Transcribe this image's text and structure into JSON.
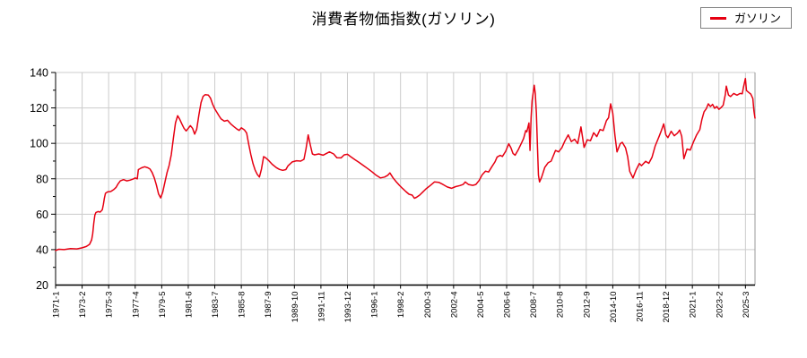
{
  "title": "消費者物価指数(ガソリン)",
  "legend": {
    "position": "top-right",
    "items": [
      {
        "label": "ガソリン",
        "color": "#e60012"
      }
    ]
  },
  "colors": {
    "background": "#ffffff",
    "line": "#e60012",
    "grid": "#cccccc",
    "axis": "#000000",
    "plot_right_border": "#999999",
    "text": "#000000",
    "legend_border": "#7f7f7f"
  },
  "chart_data": {
    "type": "line",
    "title": "消費者物価指数(ガソリン)",
    "xlabel": "",
    "ylabel": "",
    "ylim": [
      20,
      140
    ],
    "y_ticks": [
      20,
      40,
      60,
      80,
      100,
      120,
      140
    ],
    "y_minor_tick_step": 10,
    "grid": true,
    "legend_position": "top-right",
    "x_start": "1971-1",
    "x_end": "2025-12",
    "x_tick_interval_months": 25,
    "x_tick_labels": [
      "1971-1",
      "1973-2",
      "1975-3",
      "1977-4",
      "1979-5",
      "1981-6",
      "1983-7",
      "1985-8",
      "1987-9",
      "1989-10",
      "1991-11",
      "1993-12",
      "1996-1",
      "1998-2",
      "2000-3",
      "2002-4",
      "2004-5",
      "2006-6",
      "2008-7",
      "2010-8",
      "2012-9",
      "2014-10",
      "2016-11",
      "2018-12",
      "2021-1",
      "2023-2",
      "2025-3"
    ],
    "sampling_note": "monthly CPI index series; keypoint values read from chart, straight segments between keypoints",
    "series": [
      {
        "name": "ガソリン",
        "color": "#e60012",
        "points": [
          [
            "1971-1",
            39.5
          ],
          [
            "1971-4",
            40.2
          ],
          [
            "1971-9",
            40.0
          ],
          [
            "1972-3",
            40.6
          ],
          [
            "1972-9",
            40.4
          ],
          [
            "1973-2",
            41.0
          ],
          [
            "1973-6",
            41.8
          ],
          [
            "1973-9",
            43.0
          ],
          [
            "1973-11",
            45.5
          ],
          [
            "1973-12",
            49.0
          ],
          [
            "1974-1",
            55.0
          ],
          [
            "1974-2",
            59.5
          ],
          [
            "1974-3",
            61.0
          ],
          [
            "1974-5",
            61.5
          ],
          [
            "1974-7",
            61.2
          ],
          [
            "1974-9",
            62.5
          ],
          [
            "1974-10",
            65.5
          ],
          [
            "1974-11",
            69.0
          ],
          [
            "1974-12",
            71.8
          ],
          [
            "1975-2",
            72.6
          ],
          [
            "1975-5",
            72.8
          ],
          [
            "1975-8",
            74.0
          ],
          [
            "1975-10",
            75.2
          ],
          [
            "1975-12",
            77.2
          ],
          [
            "1976-2",
            78.8
          ],
          [
            "1976-5",
            79.5
          ],
          [
            "1976-8",
            78.8
          ],
          [
            "1976-11",
            79.2
          ],
          [
            "1977-2",
            79.8
          ],
          [
            "1977-4",
            80.5
          ],
          [
            "1977-6",
            80.0
          ],
          [
            "1977-7",
            85.2
          ],
          [
            "1977-10",
            86.2
          ],
          [
            "1978-1",
            86.8
          ],
          [
            "1978-4",
            86.2
          ],
          [
            "1978-6",
            85.5
          ],
          [
            "1978-8",
            83.5
          ],
          [
            "1978-10",
            80.5
          ],
          [
            "1978-12",
            76.5
          ],
          [
            "1979-2",
            71.5
          ],
          [
            "1979-4",
            69.2
          ],
          [
            "1979-6",
            72.5
          ],
          [
            "1979-8",
            78.0
          ],
          [
            "1979-10",
            83.5
          ],
          [
            "1979-12",
            87.5
          ],
          [
            "1980-2",
            93.5
          ],
          [
            "1980-4",
            103.0
          ],
          [
            "1980-6",
            111.5
          ],
          [
            "1980-8",
            115.6
          ],
          [
            "1980-10",
            113.5
          ],
          [
            "1980-12",
            111.0
          ],
          [
            "1981-2",
            108.5
          ],
          [
            "1981-4",
            107.0
          ],
          [
            "1981-6",
            108.5
          ],
          [
            "1981-8",
            110.0
          ],
          [
            "1981-10",
            108.5
          ],
          [
            "1981-12",
            105.2
          ],
          [
            "1982-2",
            108.0
          ],
          [
            "1982-4",
            116.0
          ],
          [
            "1982-6",
            123.0
          ],
          [
            "1982-8",
            126.5
          ],
          [
            "1982-10",
            127.5
          ],
          [
            "1983-1",
            127.2
          ],
          [
            "1983-3",
            125.5
          ],
          [
            "1983-5",
            122.0
          ],
          [
            "1983-7",
            119.5
          ],
          [
            "1983-9",
            117.5
          ],
          [
            "1983-11",
            115.5
          ],
          [
            "1984-1",
            113.8
          ],
          [
            "1984-4",
            112.5
          ],
          [
            "1984-7",
            113.0
          ],
          [
            "1984-10",
            111.0
          ],
          [
            "1985-1",
            109.5
          ],
          [
            "1985-4",
            108.0
          ],
          [
            "1985-6",
            107.3
          ],
          [
            "1985-8",
            108.8
          ],
          [
            "1985-11",
            107.5
          ],
          [
            "1986-1",
            105.8
          ],
          [
            "1986-3",
            99.5
          ],
          [
            "1986-5",
            93.5
          ],
          [
            "1986-7",
            88.5
          ],
          [
            "1986-9",
            85.0
          ],
          [
            "1986-11",
            82.5
          ],
          [
            "1987-1",
            81.0
          ],
          [
            "1987-3",
            85.5
          ],
          [
            "1987-5",
            92.5
          ],
          [
            "1987-7",
            91.8
          ],
          [
            "1987-10",
            90.2
          ],
          [
            "1988-1",
            88.2
          ],
          [
            "1988-5",
            86.3
          ],
          [
            "1988-8",
            85.3
          ],
          [
            "1988-11",
            84.8
          ],
          [
            "1989-2",
            85.2
          ],
          [
            "1989-4",
            87.3
          ],
          [
            "1989-8",
            89.5
          ],
          [
            "1989-12",
            90.2
          ],
          [
            "1990-4",
            90.0
          ],
          [
            "1990-7",
            91.0
          ],
          [
            "1990-9",
            97.0
          ],
          [
            "1990-11",
            104.8
          ],
          [
            "1991-1",
            99.0
          ],
          [
            "1991-3",
            94.0
          ],
          [
            "1991-5",
            93.5
          ],
          [
            "1991-9",
            94.0
          ],
          [
            "1992-1",
            93.3
          ],
          [
            "1992-7",
            95.2
          ],
          [
            "1992-11",
            94.0
          ],
          [
            "1993-2",
            91.9
          ],
          [
            "1993-6",
            91.8
          ],
          [
            "1993-9",
            93.5
          ],
          [
            "1993-12",
            93.8
          ],
          [
            "1994-3",
            92.5
          ],
          [
            "1994-7",
            90.8
          ],
          [
            "1994-11",
            89.2
          ],
          [
            "1995-3",
            87.5
          ],
          [
            "1995-7",
            85.8
          ],
          [
            "1995-11",
            84.0
          ],
          [
            "1996-3",
            82.0
          ],
          [
            "1996-7",
            80.5
          ],
          [
            "1996-11",
            81.0
          ],
          [
            "1997-2",
            82.0
          ],
          [
            "1997-4",
            83.3
          ],
          [
            "1997-7",
            80.5
          ],
          [
            "1997-10",
            78.3
          ],
          [
            "1998-1",
            76.3
          ],
          [
            "1998-4",
            74.5
          ],
          [
            "1998-7",
            72.8
          ],
          [
            "1998-10",
            71.3
          ],
          [
            "1999-1",
            70.8
          ],
          [
            "1999-3",
            69.0
          ],
          [
            "1999-5",
            69.5
          ],
          [
            "1999-8",
            70.8
          ],
          [
            "1999-11",
            72.5
          ],
          [
            "2000-2",
            74.3
          ],
          [
            "2000-6",
            76.2
          ],
          [
            "2000-10",
            78.2
          ],
          [
            "2001-2",
            78.0
          ],
          [
            "2001-6",
            76.8
          ],
          [
            "2001-10",
            75.4
          ],
          [
            "2002-2",
            74.6
          ],
          [
            "2002-6",
            75.6
          ],
          [
            "2002-10",
            76.2
          ],
          [
            "2003-1",
            76.8
          ],
          [
            "2003-3",
            78.2
          ],
          [
            "2003-6",
            76.8
          ],
          [
            "2003-10",
            76.3
          ],
          [
            "2004-1",
            76.8
          ],
          [
            "2004-4",
            79.0
          ],
          [
            "2004-7",
            82.3
          ],
          [
            "2004-10",
            84.3
          ],
          [
            "2005-1",
            83.8
          ],
          [
            "2005-4",
            86.8
          ],
          [
            "2005-7",
            89.5
          ],
          [
            "2005-9",
            92.3
          ],
          [
            "2005-12",
            93.2
          ],
          [
            "2006-2",
            92.6
          ],
          [
            "2006-5",
            95.5
          ],
          [
            "2006-8",
            99.8
          ],
          [
            "2006-10",
            97.5
          ],
          [
            "2006-12",
            94.3
          ],
          [
            "2007-2",
            93.3
          ],
          [
            "2007-5",
            96.5
          ],
          [
            "2007-8",
            100.2
          ],
          [
            "2007-10",
            102.8
          ],
          [
            "2007-12",
            107.2
          ],
          [
            "2008-1",
            106.5
          ],
          [
            "2008-3",
            111.5
          ],
          [
            "2008-4",
            96.0
          ],
          [
            "2008-5",
            114.5
          ],
          [
            "2008-6",
            124.0
          ],
          [
            "2008-8",
            132.8
          ],
          [
            "2008-9",
            128.0
          ],
          [
            "2008-10",
            117.0
          ],
          [
            "2008-11",
            98.0
          ],
          [
            "2008-12",
            82.0
          ],
          [
            "2009-1",
            78.2
          ],
          [
            "2009-3",
            81.0
          ],
          [
            "2009-6",
            86.5
          ],
          [
            "2009-9",
            89.0
          ],
          [
            "2009-12",
            90.0
          ],
          [
            "2010-2",
            93.0
          ],
          [
            "2010-4",
            96.0
          ],
          [
            "2010-7",
            95.2
          ],
          [
            "2010-10",
            97.5
          ],
          [
            "2011-1",
            101.5
          ],
          [
            "2011-4",
            104.8
          ],
          [
            "2011-7",
            101.0
          ],
          [
            "2011-10",
            102.3
          ],
          [
            "2012-1",
            99.9
          ],
          [
            "2012-4",
            109.3
          ],
          [
            "2012-7",
            97.7
          ],
          [
            "2012-10",
            102.0
          ],
          [
            "2013-1",
            101.5
          ],
          [
            "2013-4",
            106.0
          ],
          [
            "2013-7",
            103.8
          ],
          [
            "2013-10",
            107.8
          ],
          [
            "2014-1",
            107.2
          ],
          [
            "2014-4",
            112.8
          ],
          [
            "2014-6",
            114.5
          ],
          [
            "2014-8",
            122.3
          ],
          [
            "2014-10",
            117.0
          ],
          [
            "2014-12",
            104.5
          ],
          [
            "2015-2",
            95.2
          ],
          [
            "2015-5",
            99.8
          ],
          [
            "2015-7",
            100.6
          ],
          [
            "2015-10",
            97.5
          ],
          [
            "2015-12",
            92.4
          ],
          [
            "2016-2",
            84.2
          ],
          [
            "2016-5",
            80.5
          ],
          [
            "2016-8",
            85.0
          ],
          [
            "2016-11",
            88.6
          ],
          [
            "2017-1",
            87.4
          ],
          [
            "2017-5",
            89.9
          ],
          [
            "2017-8",
            88.7
          ],
          [
            "2017-11",
            92.2
          ],
          [
            "2018-2",
            98.5
          ],
          [
            "2018-6",
            104.5
          ],
          [
            "2018-8",
            107.5
          ],
          [
            "2018-10",
            111.0
          ],
          [
            "2018-12",
            104.8
          ],
          [
            "2019-2",
            103.2
          ],
          [
            "2019-5",
            106.8
          ],
          [
            "2019-8",
            104.3
          ],
          [
            "2019-11",
            105.8
          ],
          [
            "2020-1",
            107.5
          ],
          [
            "2020-3",
            104.0
          ],
          [
            "2020-5",
            91.3
          ],
          [
            "2020-8",
            96.8
          ],
          [
            "2020-11",
            96.2
          ],
          [
            "2021-2",
            100.8
          ],
          [
            "2021-5",
            104.8
          ],
          [
            "2021-8",
            107.8
          ],
          [
            "2021-10",
            113.5
          ],
          [
            "2021-12",
            117.8
          ],
          [
            "2022-2",
            119.5
          ],
          [
            "2022-4",
            122.3
          ],
          [
            "2022-6",
            120.8
          ],
          [
            "2022-8",
            122.0
          ],
          [
            "2022-10",
            119.8
          ],
          [
            "2022-12",
            120.8
          ],
          [
            "2023-2",
            119.2
          ],
          [
            "2023-4",
            120.2
          ],
          [
            "2023-6",
            121.5
          ],
          [
            "2023-8",
            127.5
          ],
          [
            "2023-9",
            132.3
          ],
          [
            "2023-11",
            127.3
          ],
          [
            "2024-1",
            126.4
          ],
          [
            "2024-4",
            128.2
          ],
          [
            "2024-7",
            127.2
          ],
          [
            "2024-10",
            128.2
          ],
          [
            "2024-12",
            128.0
          ],
          [
            "2025-1",
            131.3
          ],
          [
            "2025-3",
            136.6
          ],
          [
            "2025-4",
            129.8
          ],
          [
            "2025-6",
            128.8
          ],
          [
            "2025-8",
            127.8
          ],
          [
            "2025-10",
            125.3
          ],
          [
            "2025-11",
            118.3
          ],
          [
            "2025-12",
            114.3
          ]
        ]
      }
    ]
  }
}
